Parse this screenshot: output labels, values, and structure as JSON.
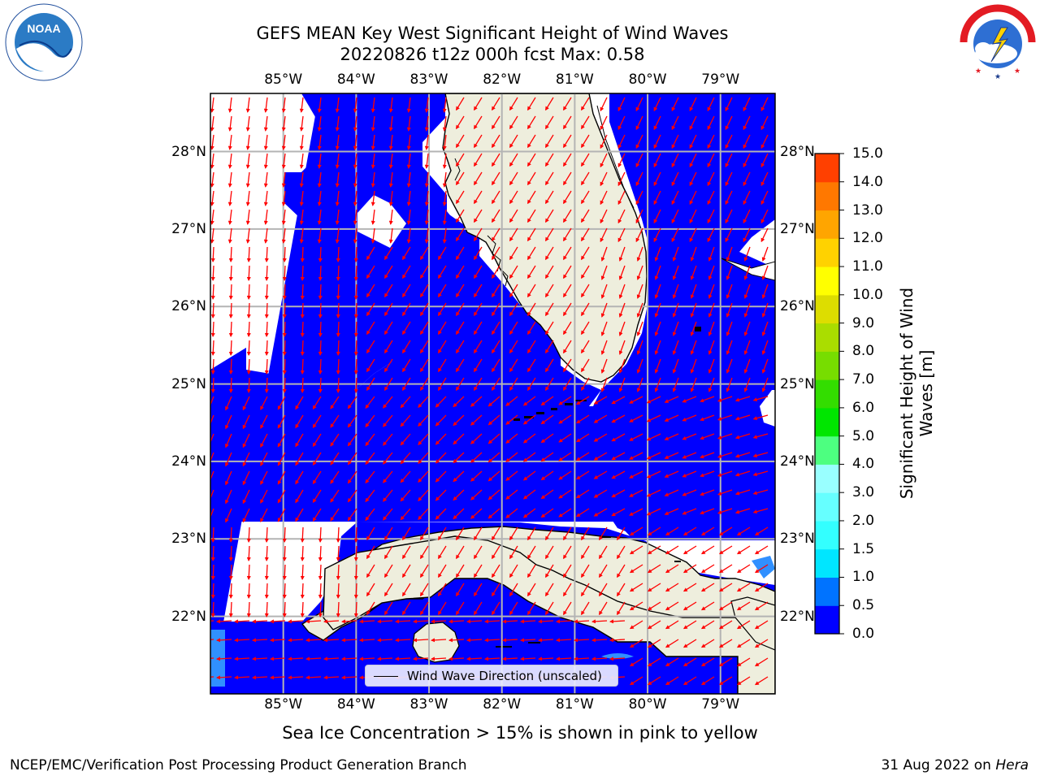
{
  "header": {
    "title_line1": "GEFS MEAN Key West Significant Height of Wind Waves",
    "title_line2": "20220826 t12z 000h fcst   Max: 0.58",
    "noaa_logo_text": "NOAA",
    "noaa_logo_ring": "NATIONAL OCEANIC AND ATMOSPHERIC ADMINISTRATION · U.S. DEPARTMENT OF COMMERCE",
    "nws_logo_ring": "NATIONAL WEATHER SERVICE"
  },
  "map": {
    "lon_labels": [
      "85°W",
      "84°W",
      "83°W",
      "82°W",
      "81°W",
      "80°W",
      "79°W"
    ],
    "lat_labels": [
      "28°N",
      "27°N",
      "26°N",
      "25°N",
      "24°N",
      "23°N",
      "22°N"
    ],
    "lon_values": [
      -85,
      -84,
      -83,
      -82,
      -81,
      -80,
      -79
    ],
    "lat_values": [
      28,
      27,
      26,
      25,
      24,
      23,
      22
    ],
    "extent": {
      "lon_min": -86.0,
      "lon_max": -78.25,
      "lat_min": 21.0,
      "lat_max": 28.75
    },
    "ocean_color": "#0000ff",
    "land_color": "#eeeedd",
    "arrow_color": "#ff0000",
    "grid_color": "#b4b4b4",
    "legend_label": "Wind Wave Direction (unscaled)"
  },
  "colorbar": {
    "label": "Significant Height of Wind Waves [m]",
    "tick_labels": [
      "0.0",
      "0.5",
      "1.0",
      "1.5",
      "2.0",
      "3.0",
      "4.0",
      "5.0",
      "6.0",
      "7.0",
      "8.0",
      "9.0",
      "10.0",
      "11.0",
      "12.0",
      "13.0",
      "14.0",
      "15.0"
    ],
    "colors": [
      "#0000ff",
      "#0073ff",
      "#00e6ff",
      "#33ffff",
      "#66ffff",
      "#99ffff",
      "#4dff80",
      "#00e600",
      "#33dd00",
      "#77dd00",
      "#aadd00",
      "#dddd00",
      "#ffff00",
      "#ffd200",
      "#ffa500",
      "#ff7800",
      "#ff4000",
      "#ff0000"
    ]
  },
  "footer": {
    "sea_ice_note": "Sea Ice Concentration > 15% is shown in pink to yellow",
    "credit": "NCEP/EMC/Verification Post Processing Product Generation Branch",
    "date": "31 Aug 2022 on",
    "host": "Hera"
  }
}
